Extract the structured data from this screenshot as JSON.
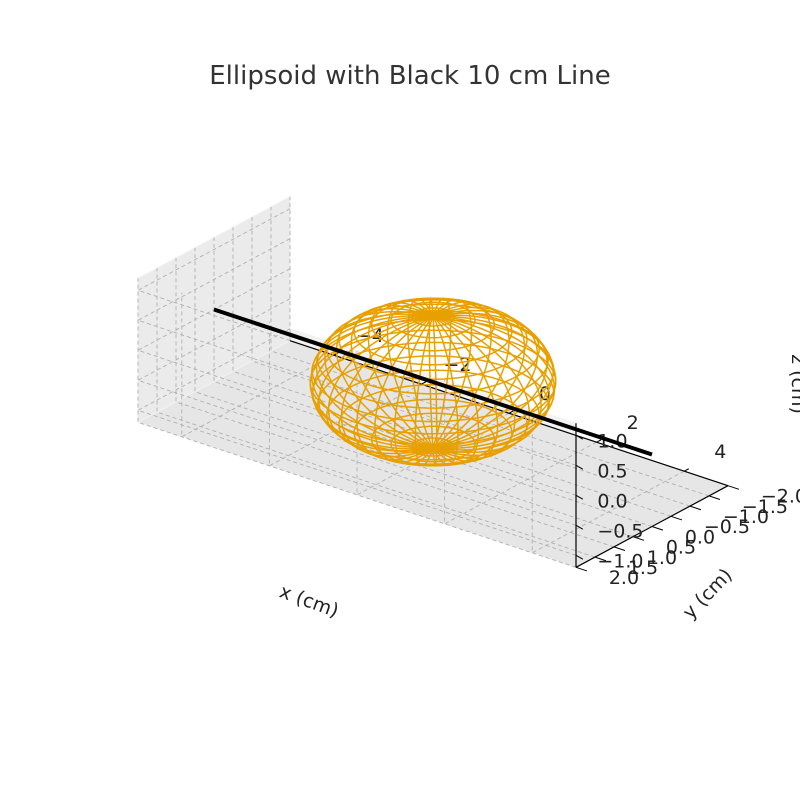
{
  "chart_data": {
    "type": "3d-wireframe",
    "title": "Ellipsoid with Black 10 cm Line",
    "xlabel": "x (cm)",
    "ylabel": "y (cm)",
    "zlabel": "z (cm)",
    "xlim": [
      -5,
      5
    ],
    "ylim": [
      -2.0,
      2.0
    ],
    "zlim": [
      -1.2,
      1.2
    ],
    "xticks": [
      -4,
      -2,
      0,
      2,
      4
    ],
    "yticks": [
      -2.0,
      -1.5,
      -1.0,
      -0.5,
      0.0,
      0.5,
      1.0,
      1.5,
      2.0
    ],
    "zticks": [
      -1.0,
      -0.5,
      0.0,
      0.5,
      1.0
    ],
    "grid": true,
    "series": [
      {
        "kind": "ellipsoid-wireframe",
        "color": "#e8a000",
        "center": [
          0,
          0,
          0
        ],
        "semi_axes": {
          "x": 2.2,
          "y": 2.0,
          "z": 1.1
        }
      },
      {
        "kind": "line",
        "color": "#000000",
        "from": [
          -5,
          0,
          0
        ],
        "to": [
          5,
          0,
          0
        ]
      }
    ]
  }
}
